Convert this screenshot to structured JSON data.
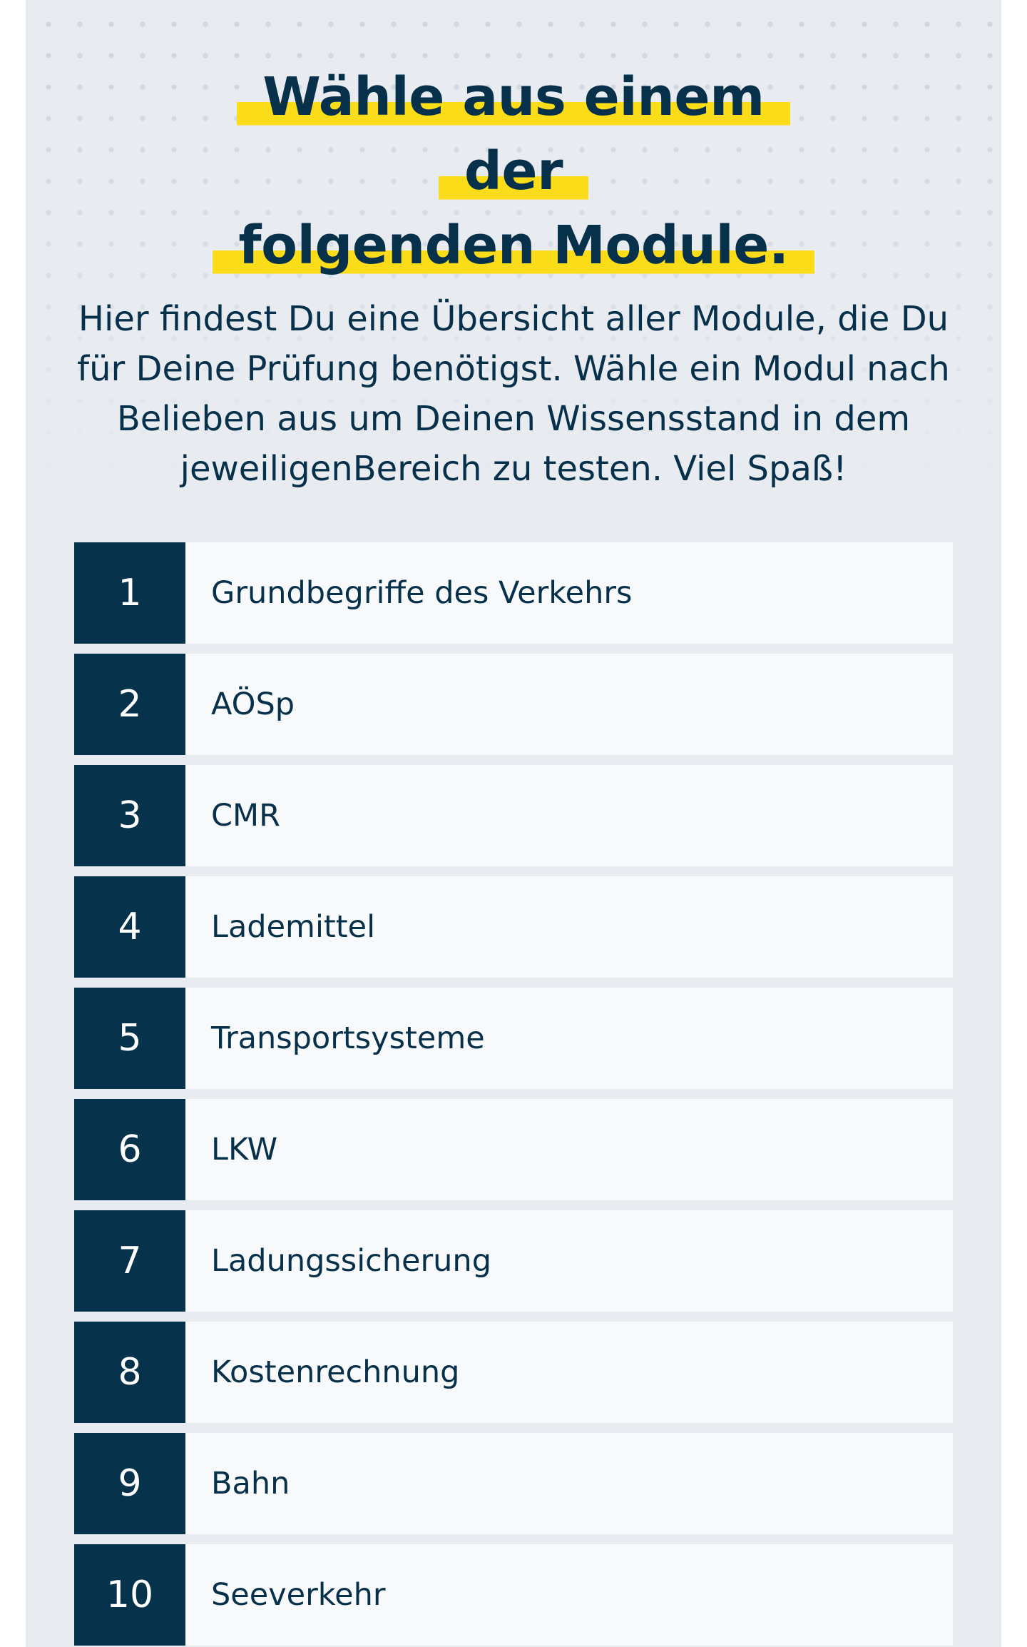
{
  "header": {
    "title_line1": "Wähle aus einem der",
    "title_line2": "folgenden Module.",
    "intro": "Hier findest Du eine Übersicht aller Module, die Du für Deine Prüfung benötigst. Wähle ein Modul nach Belieben aus um Deinen Wissensstand in dem jeweiligenBereich zu testen. Viel Spaß!"
  },
  "colors": {
    "page_background": "#e8ecf1",
    "highlight": "#fbdc19",
    "navy": "#06324c",
    "row_background": "#f7f9fb"
  },
  "modules": [
    {
      "number": "1",
      "label": "Grundbegriffe des Verkehrs"
    },
    {
      "number": "2",
      "label": "AÖSp"
    },
    {
      "number": "3",
      "label": "CMR"
    },
    {
      "number": "4",
      "label": "Lademittel"
    },
    {
      "number": "5",
      "label": "Transportsysteme"
    },
    {
      "number": "6",
      "label": "LKW"
    },
    {
      "number": "7",
      "label": "Ladungssicherung"
    },
    {
      "number": "8",
      "label": "Kostenrechnung"
    },
    {
      "number": "9",
      "label": "Bahn"
    },
    {
      "number": "10",
      "label": "Seeverkehr"
    }
  ]
}
